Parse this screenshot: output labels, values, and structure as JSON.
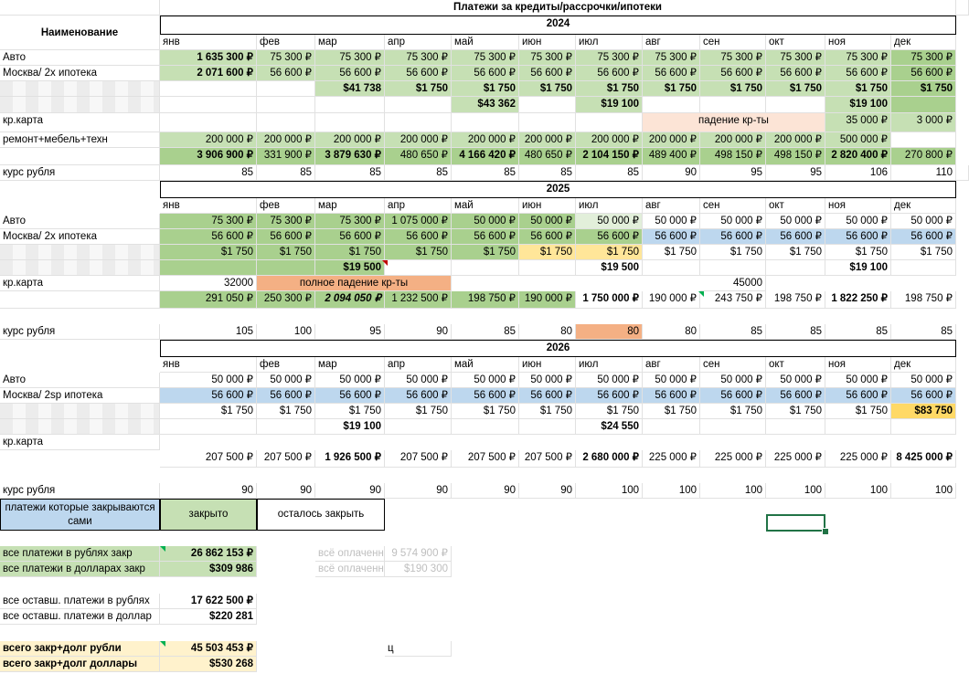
{
  "title": "Платежи за кредиты/рассрочки/ипотеки",
  "name_header": "Наименование",
  "months": [
    "янв",
    "фев",
    "мар",
    "апр",
    "май",
    "июн",
    "июл",
    "авг",
    "сен",
    "окт",
    "ноя",
    "дек"
  ],
  "y2024": {
    "year": "2024",
    "labels": [
      "Авто",
      "Москва/ 2х ипотека",
      "",
      "",
      "кр.карта",
      "ремонт+мебель+техн"
    ],
    "auto": [
      "1 635 300 ₽",
      "75 300 ₽",
      "75 300 ₽",
      "75 300 ₽",
      "75 300 ₽",
      "75 300 ₽",
      "75 300 ₽",
      "75 300 ₽",
      "75 300 ₽",
      "75 300 ₽",
      "75 300 ₽",
      "75 300 ₽"
    ],
    "mortgage": [
      "2 071 600 ₽",
      "56 600 ₽",
      "56 600 ₽",
      "56 600 ₽",
      "56 600 ₽",
      "56 600 ₽",
      "56 600 ₽",
      "56 600 ₽",
      "56 600 ₽",
      "56 600 ₽",
      "56 600 ₽",
      "56 600 ₽"
    ],
    "usd": [
      "",
      "",
      "$41 738",
      "$1 750",
      "$1 750",
      "$1 750",
      "$1 750",
      "$1 750",
      "$1 750",
      "$1 750",
      "$1 750",
      "$1 750"
    ],
    "usd2": [
      "",
      "",
      "",
      "",
      "$43 362",
      "",
      "$19 100",
      "",
      "",
      "",
      "$19 100",
      ""
    ],
    "card": [
      "",
      "",
      "",
      "",
      "",
      "",
      "",
      "",
      "",
      "",
      "35 000 ₽",
      "3 000 ₽"
    ],
    "card_note": "падение кр-ты",
    "repair": [
      "200 000 ₽",
      "200 000 ₽",
      "200 000 ₽",
      "200 000 ₽",
      "200 000 ₽",
      "200 000 ₽",
      "200 000 ₽",
      "200 000 ₽",
      "200 000 ₽",
      "200 000 ₽",
      "500 000 ₽",
      ""
    ],
    "total": [
      "3 906 900 ₽",
      "331 900 ₽",
      "3 879 630 ₽",
      "480 650 ₽",
      "4 166 420 ₽",
      "480 650 ₽",
      "2 104 150 ₽",
      "489 400 ₽",
      "498 150 ₽",
      "498 150 ₽",
      "2 820 400 ₽",
      "270 800 ₽"
    ],
    "rate_label": "курс рубля",
    "rate": [
      "85",
      "85",
      "85",
      "85",
      "85",
      "85",
      "85",
      "90",
      "95",
      "95",
      "106",
      "110"
    ]
  },
  "y2025": {
    "year": "2025",
    "labels": [
      "Авто",
      "Москва/ 2х ипотека",
      "",
      "",
      "кр.карта"
    ],
    "auto": [
      "75 300 ₽",
      "75 300 ₽",
      "75 300 ₽",
      "1 075 000 ₽",
      "50 000 ₽",
      "50 000 ₽",
      "50 000 ₽",
      "50 000 ₽",
      "50 000 ₽",
      "50 000 ₽",
      "50 000 ₽",
      "50 000 ₽"
    ],
    "mortgage": [
      "56 600 ₽",
      "56 600 ₽",
      "56 600 ₽",
      "56 600 ₽",
      "56 600 ₽",
      "56 600 ₽",
      "56 600 ₽",
      "56 600 ₽",
      "56 600 ₽",
      "56 600 ₽",
      "56 600 ₽",
      "56 600 ₽"
    ],
    "usd": [
      "$1 750",
      "$1 750",
      "$1 750",
      "$1 750",
      "$1 750",
      "$1 750",
      "$1 750",
      "$1 750",
      "$1 750",
      "$1 750",
      "$1 750",
      "$1 750"
    ],
    "usd2": [
      "",
      "",
      "$19 500",
      "",
      "",
      "",
      "$19 500",
      "",
      "",
      "",
      "$19 100",
      ""
    ],
    "card_first": "32000",
    "card_note": "полное падение кр-ты",
    "card_sep": "45000",
    "total": [
      "291 050 ₽",
      "250 300 ₽",
      "2 094 050 ₽",
      "1 232 500 ₽",
      "198 750 ₽",
      "190 000 ₽",
      "1 750 000 ₽",
      "190 000 ₽",
      "243 750 ₽",
      "198 750 ₽",
      "1 822 250 ₽",
      "198 750 ₽"
    ],
    "rate_label": "курс рубля",
    "rate": [
      "105",
      "100",
      "95",
      "90",
      "85",
      "80",
      "80",
      "80",
      "85",
      "85",
      "85",
      "85"
    ]
  },
  "y2026": {
    "year": "2026",
    "labels": [
      "Авто",
      "Москва/ 2sp ипотека",
      "",
      "",
      "кр.карта"
    ],
    "auto": [
      "50 000 ₽",
      "50 000 ₽",
      "50 000 ₽",
      "50 000 ₽",
      "50 000 ₽",
      "50 000 ₽",
      "50 000 ₽",
      "50 000 ₽",
      "50 000 ₽",
      "50 000 ₽",
      "50 000 ₽",
      "50 000 ₽"
    ],
    "mortgage": [
      "56 600 ₽",
      "56 600 ₽",
      "56 600 ₽",
      "56 600 ₽",
      "56 600 ₽",
      "56 600 ₽",
      "56 600 ₽",
      "56 600 ₽",
      "56 600 ₽",
      "56 600 ₽",
      "56 600 ₽",
      "56 600 ₽"
    ],
    "usd": [
      "$1 750",
      "$1 750",
      "$1 750",
      "$1 750",
      "$1 750",
      "$1 750",
      "$1 750",
      "$1 750",
      "$1 750",
      "$1 750",
      "$1 750",
      "$83 750"
    ],
    "usd2": [
      "",
      "",
      "$19 100",
      "",
      "",
      "",
      "$24 550",
      "",
      "",
      "",
      "",
      ""
    ],
    "total": [
      "207 500 ₽",
      "207 500 ₽",
      "1 926 500 ₽",
      "207 500 ₽",
      "207 500 ₽",
      "207 500 ₽",
      "2 680 000 ₽",
      "225 000 ₽",
      "225 000 ₽",
      "225 000 ₽",
      "225 000 ₽",
      "8 425 000 ₽"
    ],
    "rate_label": "курс рубля",
    "rate": [
      "90",
      "90",
      "90",
      "90",
      "90",
      "90",
      "100",
      "100",
      "100",
      "100",
      "100",
      "100"
    ]
  },
  "legend": {
    "self_closing": "платежи которые закрываются сами",
    "closed": "закрыто",
    "remaining": "осталось закрыть"
  },
  "summary": {
    "rub_closed_label": "все платежи в рублях закр",
    "rub_closed": "26 862 153 ₽",
    "usd_closed_label": "все платежи в долларах закр",
    "usd_closed": "$309 986",
    "paid_rub_label": "всё оплаченн",
    "paid_rub": "9 574 900 ₽",
    "paid_usd_label": "всё оплаченн",
    "paid_usd": "$190 300",
    "rub_left_label": "все оставш. платежи в рублях",
    "rub_left": "17 622 500 ₽",
    "usd_left_label": "все оставш. платежи в доллар",
    "usd_left": "$220 281",
    "total_rub_label": "всего закр+долг рубли",
    "total_rub": "45 503 453 ₽",
    "total_usd_label": "всего закр+долг доллары",
    "total_usd": "$530 268",
    "stray": "ц"
  }
}
